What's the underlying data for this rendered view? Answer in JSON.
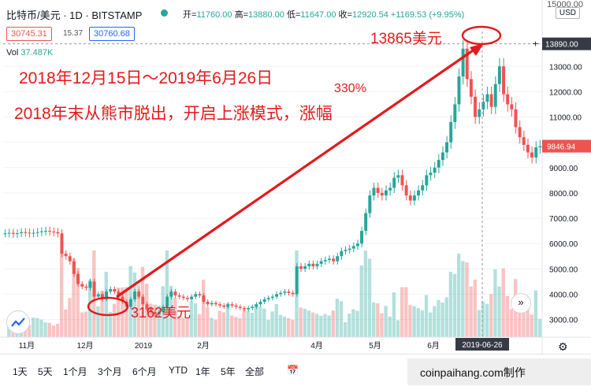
{
  "header": {
    "title": "比特币/美元 · 1D · BITSTAMP",
    "ohlc": [
      {
        "k": "开=",
        "v": "11760.00"
      },
      {
        "k": "高=",
        "v": "13880.00"
      },
      {
        "k": "低=",
        "v": "11647.00"
      },
      {
        "k": "收=",
        "v": "12920.54 +1169.53 (+9.95%)"
      }
    ],
    "sell_price": "30745.31",
    "spread": "15.37",
    "buy_price": "30760.68",
    "volume_label": "Vol",
    "volume_value": "37.487K",
    "currency": "USD",
    "top_right": "15000.00"
  },
  "annotations": {
    "range": "2018年12月15日～2019年6月26日",
    "headline": "2018年末从熊市脱出，开启上涨模式，涨幅",
    "pct": "330%",
    "low": "3162美元",
    "high": "13865美元"
  },
  "toolbar": {
    "ranges": [
      "1天",
      "5天",
      "1个月",
      "3个月",
      "6个月",
      "YTD",
      "1年",
      "5年",
      "全部"
    ]
  },
  "watermark": "coinpaihang.com制作",
  "colors": {
    "up": "#26a69a",
    "down": "#ef5350",
    "annotation": "#e31a1c"
  },
  "chart_data": {
    "type": "candlestick",
    "axis_y": {
      "ticks": [
        3000,
        4000,
        5000,
        6000,
        7000,
        8000,
        9000,
        10000,
        11000,
        12000,
        13000
      ],
      "min": 2300,
      "max": 15000
    },
    "axis_x": {
      "labels": [
        "11月",
        "12月",
        "2019",
        "2月",
        "4月",
        "5月",
        "6月"
      ]
    },
    "crosshair_x_label": "2019-06-26",
    "crosshair_price_label": "13890.00",
    "last_price_label": "9846.94",
    "series": [
      {
        "values": [
          6400,
          6420,
          6380,
          6410,
          6450,
          6430,
          6400,
          6420,
          6450,
          6480,
          6500,
          6470,
          6450,
          6400,
          5600,
          5500,
          5300,
          4800,
          4400,
          4300,
          4250,
          4500,
          3900,
          4000,
          3800,
          4100,
          4200,
          4100,
          3900,
          3700,
          3500,
          3800,
          4100,
          3900,
          3600,
          3400,
          3300,
          3200,
          3300,
          3500,
          3900,
          4100,
          3950,
          3900,
          3850,
          3800,
          3900,
          4000,
          3950,
          3700,
          3600,
          3650,
          3600,
          3550,
          3500,
          3600,
          3550,
          3500,
          3450,
          3400,
          3450,
          3500,
          3600,
          3700,
          3800,
          3850,
          3900,
          4000,
          4050,
          4100,
          4050,
          4000,
          5100,
          5000,
          5100,
          5200,
          5100,
          5200,
          5300,
          5350,
          5400,
          5300,
          5500,
          5700,
          5750,
          5800,
          5900,
          6000,
          6500,
          7200,
          7900,
          8200,
          8000,
          7900,
          8100,
          8200,
          8600,
          8700,
          8300,
          7900,
          7700,
          7900,
          8100,
          8300,
          8700,
          8800,
          9000,
          9300,
          9600,
          10000,
          10800,
          11500,
          12600,
          13700,
          12500,
          11800,
          11000,
          11300,
          11600,
          11900,
          11400,
          12300,
          13000,
          11900,
          11500,
          11300,
          10600,
          10200,
          9900,
          9600,
          9400,
          9800,
          9846.94
        ]
      }
    ]
  }
}
